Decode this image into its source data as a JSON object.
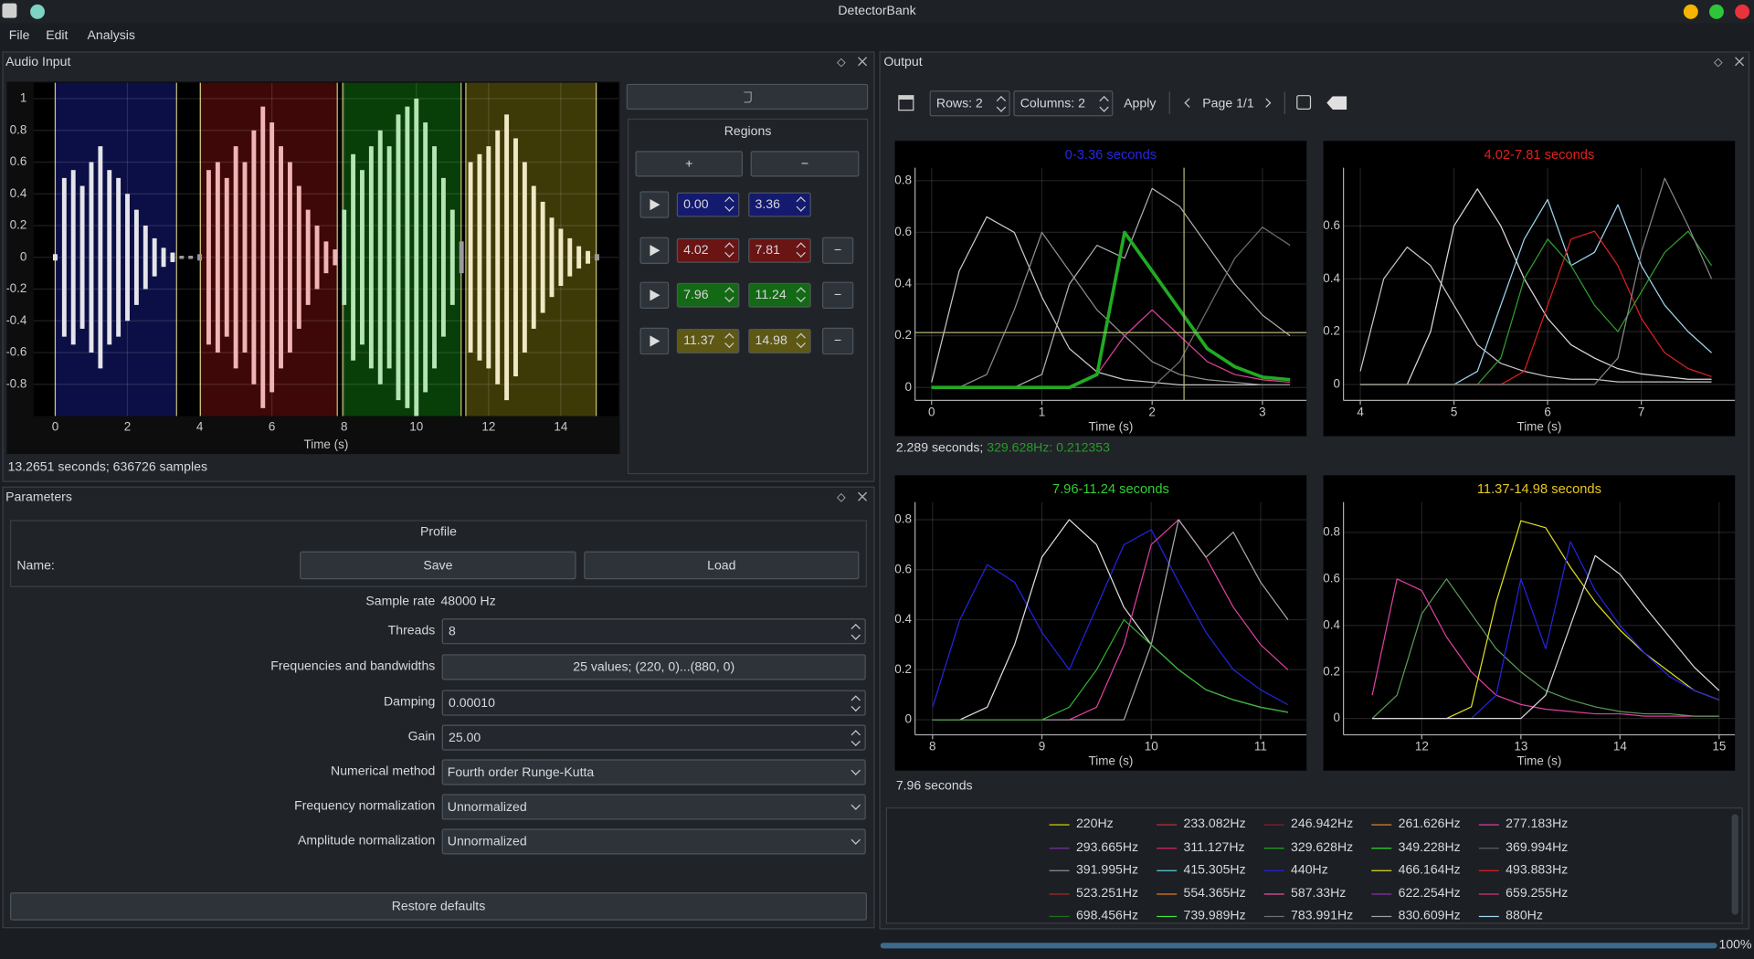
{
  "window": {
    "title": "DetectorBank",
    "menu": [
      "File",
      "Edit",
      "Analysis"
    ]
  },
  "audio_input": {
    "title": "Audio Input",
    "status": "13.2651 seconds; 636726 samples",
    "chart_data": {
      "type": "waveform",
      "xlabel": "Time (s)",
      "xlim": [
        -0.6,
        15.6
      ],
      "ylim": [
        -1.0,
        1.1
      ],
      "xticks": [
        0,
        2,
        4,
        6,
        8,
        10,
        12,
        14
      ],
      "yticks": [
        -0.8,
        -0.6,
        -0.4,
        -0.2,
        0,
        0.2,
        0.4,
        0.6,
        0.8,
        1
      ],
      "grid": true,
      "color": "#9a9a9a",
      "regions": [
        {
          "start": 0,
          "end": 3.36,
          "color": "#0c0f45",
          "wave_color": "#e4e4ea"
        },
        {
          "start": 4.02,
          "end": 7.81,
          "color": "#3e0808",
          "wave_color": "#f0b4b4"
        },
        {
          "start": 7.96,
          "end": 11.24,
          "color": "#083e08",
          "wave_color": "#b4e4b4"
        },
        {
          "start": 11.37,
          "end": 14.98,
          "color": "#3e3a08",
          "wave_color": "#f0e8c4"
        }
      ],
      "x": [
        0,
        0.25,
        0.5,
        0.75,
        1,
        1.25,
        1.5,
        1.75,
        2,
        2.25,
        2.5,
        2.75,
        3,
        3.25,
        3.5,
        3.75,
        4,
        4.25,
        4.5,
        4.75,
        5,
        5.25,
        5.5,
        5.75,
        6,
        6.25,
        6.5,
        6.75,
        7,
        7.25,
        7.5,
        7.75,
        8,
        8.25,
        8.5,
        8.75,
        9,
        9.25,
        9.5,
        9.75,
        10,
        10.25,
        10.5,
        10.75,
        11,
        11.25,
        11.5,
        11.75,
        12,
        12.25,
        12.5,
        12.75,
        13,
        13.25,
        13.5,
        13.75,
        14,
        14.25,
        14.5,
        14.75,
        15
      ],
      "values": [
        0.02,
        0.5,
        0.55,
        0.45,
        0.6,
        0.7,
        0.55,
        0.5,
        0.4,
        0.3,
        0.2,
        0.12,
        0.06,
        0.03,
        0.01,
        0.01,
        0.02,
        0.55,
        0.6,
        0.5,
        0.7,
        0.6,
        0.8,
        0.95,
        0.85,
        0.7,
        0.6,
        0.45,
        0.3,
        0.2,
        0.1,
        0.05,
        0.3,
        0.65,
        0.55,
        0.7,
        0.8,
        0.7,
        0.9,
        0.95,
        1.0,
        0.85,
        0.7,
        0.5,
        0.3,
        0.1,
        0.6,
        0.65,
        0.7,
        0.8,
        0.9,
        0.75,
        0.6,
        0.45,
        0.35,
        0.25,
        0.18,
        0.12,
        0.07,
        0.04,
        0.02
      ]
    }
  },
  "regions_panel": {
    "title": "Regions",
    "add": "+",
    "remove": "−",
    "rows": [
      {
        "start": "0.00",
        "end": "3.36",
        "color": "#141a6e",
        "removable": false
      },
      {
        "start": "4.02",
        "end": "7.81",
        "color": "#6a1414",
        "removable": true
      },
      {
        "start": "7.96",
        "end": "11.24",
        "color": "#146a14",
        "removable": true
      },
      {
        "start": "11.37",
        "end": "14.98",
        "color": "#5e5814",
        "removable": true
      }
    ]
  },
  "parameters": {
    "title": "Parameters",
    "profile": {
      "title": "Profile",
      "name_label": "Name:",
      "save": "Save",
      "load": "Load"
    },
    "fields": [
      {
        "label": "Sample rate",
        "value": "48000 Hz",
        "kind": "text"
      },
      {
        "label": "Threads",
        "value": "8",
        "kind": "spin"
      },
      {
        "label": "Frequencies and bandwidths",
        "value": "25 values; (220, 0)...(880, 0)",
        "kind": "button"
      },
      {
        "label": "Damping",
        "value": "0.00010",
        "kind": "spin"
      },
      {
        "label": "Gain",
        "value": "25.00",
        "kind": "spin"
      },
      {
        "label": "Numerical method",
        "value": "Fourth order Runge-Kutta",
        "kind": "combo"
      },
      {
        "label": "Frequency normalization",
        "value": "Unnormalized",
        "kind": "combo"
      },
      {
        "label": "Amplitude normalization",
        "value": "Unnormalized",
        "kind": "combo"
      }
    ],
    "restore": "Restore defaults"
  },
  "output": {
    "title": "Output",
    "rows": "Rows: 2",
    "columns": "Columns: 2",
    "apply": "Apply",
    "page": "Page 1/1",
    "chart_data": [
      {
        "type": "line",
        "title": "0-3.36 seconds",
        "title_color": "#2626e0",
        "xlabel": "Time (s)",
        "xlim": [
          -0.15,
          3.4
        ],
        "ylim": [
          -0.05,
          0.85
        ],
        "xticks": [
          0,
          1,
          2,
          3
        ],
        "yticks": [
          0,
          0.2,
          0.4,
          0.6,
          0.8
        ],
        "grid": true,
        "x": [
          0,
          0.25,
          0.5,
          0.75,
          1,
          1.25,
          1.5,
          1.75,
          2,
          2.25,
          2.5,
          2.75,
          3,
          3.25
        ],
        "series": [
          {
            "color": "#c8c8c8",
            "values": [
              0.02,
              0.45,
              0.66,
              0.6,
              0.35,
              0.15,
              0.06,
              0.03,
              0.02,
              0.01,
              0.01,
              0.01,
              0.01,
              0.01
            ]
          },
          {
            "color": "#909090",
            "values": [
              0,
              0,
              0.05,
              0.3,
              0.6,
              0.45,
              0.3,
              0.2,
              0.1,
              0.05,
              0.03,
              0.02,
              0.01,
              0.01
            ]
          },
          {
            "color": "#b0b0b0",
            "values": [
              0,
              0,
              0,
              0,
              0.05,
              0.4,
              0.55,
              0.5,
              0.77,
              0.7,
              0.55,
              0.4,
              0.28,
              0.2
            ]
          },
          {
            "color": "#707070",
            "values": [
              0,
              0,
              0,
              0,
              0,
              0,
              0,
              0,
              0,
              0.1,
              0.3,
              0.5,
              0.62,
              0.55
            ]
          },
          {
            "color": "#e040a0",
            "values": [
              0,
              0,
              0,
              0,
              0,
              0,
              0.05,
              0.2,
              0.3,
              0.2,
              0.1,
              0.05,
              0.03,
              0.02
            ]
          },
          {
            "color": "#22aa22",
            "width": 3,
            "values": [
              0,
              0,
              0,
              0,
              0,
              0,
              0.05,
              0.6,
              0.45,
              0.3,
              0.15,
              0.08,
              0.04,
              0.03
            ]
          }
        ],
        "cursor": {
          "x": 2.289,
          "y": 0.212353,
          "color": "#b8b878"
        }
      },
      {
        "type": "line",
        "title": "4.02-7.81 seconds",
        "title_color": "#e02020",
        "xlabel": "Time (s)",
        "xlim": [
          3.82,
          8.0
        ],
        "ylim": [
          -0.06,
          0.82
        ],
        "xticks": [
          4,
          5,
          6,
          7
        ],
        "yticks": [
          0,
          0.2,
          0.4,
          0.6
        ],
        "grid": true,
        "x": [
          4,
          4.25,
          4.5,
          4.75,
          5,
          5.25,
          5.5,
          5.75,
          6,
          6.25,
          6.5,
          6.75,
          7,
          7.25,
          7.5,
          7.75
        ],
        "series": [
          {
            "color": "#c8c8c8",
            "values": [
              0.05,
              0.4,
              0.52,
              0.45,
              0.3,
              0.15,
              0.08,
              0.05,
              0.03,
              0.02,
              0.02,
              0.01,
              0.01,
              0.01,
              0.01,
              0.01
            ]
          },
          {
            "color": "#dcdcdc",
            "values": [
              0,
              0,
              0,
              0.2,
              0.6,
              0.74,
              0.6,
              0.4,
              0.25,
              0.15,
              0.1,
              0.06,
              0.04,
              0.03,
              0.02,
              0.02
            ]
          },
          {
            "color": "#a0d8f0",
            "values": [
              0,
              0,
              0,
              0,
              0,
              0.05,
              0.3,
              0.55,
              0.7,
              0.45,
              0.5,
              0.68,
              0.45,
              0.3,
              0.2,
              0.12
            ]
          },
          {
            "color": "#e02020",
            "values": [
              0,
              0,
              0,
              0,
              0,
              0,
              0,
              0.05,
              0.3,
              0.55,
              0.58,
              0.45,
              0.25,
              0.12,
              0.06,
              0.03
            ]
          },
          {
            "color": "#30a030",
            "values": [
              0,
              0,
              0,
              0,
              0,
              0,
              0.1,
              0.4,
              0.55,
              0.45,
              0.3,
              0.2,
              0.35,
              0.5,
              0.58,
              0.45
            ]
          },
          {
            "color": "#888888",
            "values": [
              0,
              0,
              0,
              0,
              0,
              0,
              0,
              0,
              0,
              0,
              0,
              0.1,
              0.5,
              0.78,
              0.6,
              0.4
            ]
          }
        ]
      },
      {
        "type": "line",
        "title": "7.96-11.24 seconds",
        "title_color": "#30d030",
        "xlabel": "Time (s)",
        "xlim": [
          7.84,
          11.42
        ],
        "ylim": [
          -0.06,
          0.87
        ],
        "xticks": [
          8,
          9,
          10,
          11
        ],
        "yticks": [
          0,
          0.2,
          0.4,
          0.6,
          0.8
        ],
        "grid": true,
        "x": [
          8,
          8.25,
          8.5,
          8.75,
          9,
          9.25,
          9.5,
          9.75,
          10,
          10.25,
          10.5,
          10.75,
          11,
          11.25
        ],
        "series": [
          {
            "color": "#2424e0",
            "values": [
              0.05,
              0.4,
              0.62,
              0.55,
              0.35,
              0.2,
              0.45,
              0.7,
              0.76,
              0.55,
              0.35,
              0.2,
              0.12,
              0.06
            ]
          },
          {
            "color": "#e0e0e0",
            "values": [
              0,
              0,
              0.05,
              0.3,
              0.65,
              0.8,
              0.7,
              0.45,
              0.3,
              0.2,
              0.12,
              0.08,
              0.05,
              0.03
            ]
          },
          {
            "color": "#e040a0",
            "values": [
              0,
              0,
              0,
              0,
              0,
              0,
              0.05,
              0.3,
              0.7,
              0.8,
              0.65,
              0.45,
              0.3,
              0.2
            ]
          },
          {
            "color": "#aaaaaa",
            "values": [
              0,
              0,
              0,
              0,
              0,
              0,
              0,
              0,
              0.3,
              0.8,
              0.65,
              0.75,
              0.55,
              0.4
            ]
          },
          {
            "color": "#30b030",
            "values": [
              0,
              0,
              0,
              0,
              0,
              0.05,
              0.2,
              0.4,
              0.3,
              0.2,
              0.12,
              0.08,
              0.05,
              0.03
            ]
          }
        ]
      },
      {
        "type": "line",
        "title": "11.37-14.98 seconds",
        "title_color": "#e8c820",
        "xlabel": "Time (s)",
        "xlim": [
          11.21,
          15.16
        ],
        "ylim": [
          -0.07,
          0.93
        ],
        "xticks": [
          12,
          13,
          14,
          15
        ],
        "yticks": [
          0,
          0.2,
          0.4,
          0.6,
          0.8
        ],
        "grid": true,
        "x": [
          11.5,
          11.75,
          12,
          12.25,
          12.5,
          12.75,
          13,
          13.25,
          13.5,
          13.75,
          14,
          14.25,
          14.5,
          14.75,
          15
        ],
        "series": [
          {
            "color": "#e040a0",
            "values": [
              0.1,
              0.6,
              0.55,
              0.35,
              0.2,
              0.1,
              0.06,
              0.04,
              0.03,
              0.02,
              0.02,
              0.01,
              0.01,
              0.01,
              0.01
            ]
          },
          {
            "color": "#5a9a5a",
            "values": [
              0,
              0.1,
              0.45,
              0.6,
              0.45,
              0.3,
              0.2,
              0.12,
              0.08,
              0.05,
              0.03,
              0.02,
              0.02,
              0.01,
              0.01
            ]
          },
          {
            "color": "#e0e020",
            "values": [
              0,
              0,
              0,
              0,
              0.05,
              0.5,
              0.85,
              0.82,
              0.65,
              0.5,
              0.38,
              0.28,
              0.2,
              0.12,
              0.08
            ]
          },
          {
            "color": "#2424e0",
            "values": [
              0,
              0,
              0,
              0,
              0,
              0.1,
              0.6,
              0.3,
              0.76,
              0.55,
              0.4,
              0.28,
              0.18,
              0.12,
              0.08
            ]
          },
          {
            "color": "#d8d8d8",
            "values": [
              0,
              0,
              0,
              0,
              0,
              0,
              0,
              0.1,
              0.4,
              0.7,
              0.62,
              0.48,
              0.35,
              0.22,
              0.12
            ]
          }
        ]
      }
    ],
    "cursor_status": {
      "time": "2.289 seconds; ",
      "reading": "329.628Hz: 0.212353",
      "reading_color": "#2a9a2a"
    },
    "status": "7.96 seconds",
    "legend": [
      {
        "name": "220Hz",
        "color": "#d4d400"
      },
      {
        "name": "233.082Hz",
        "color": "#c03030"
      },
      {
        "name": "246.942Hz",
        "color": "#8a2020"
      },
      {
        "name": "261.626Hz",
        "color": "#e08820"
      },
      {
        "name": "277.183Hz",
        "color": "#e040a0"
      },
      {
        "name": "293.665Hz",
        "color": "#8030a0"
      },
      {
        "name": "311.127Hz",
        "color": "#e02070"
      },
      {
        "name": "329.628Hz",
        "color": "#22aa22"
      },
      {
        "name": "349.228Hz",
        "color": "#30e030"
      },
      {
        "name": "369.994Hz",
        "color": "#606060"
      },
      {
        "name": "391.995Hz",
        "color": "#909090"
      },
      {
        "name": "415.305Hz",
        "color": "#60d0e0"
      },
      {
        "name": "440Hz",
        "color": "#2424e0"
      },
      {
        "name": "466.164Hz",
        "color": "#e0e020"
      },
      {
        "name": "493.883Hz",
        "color": "#e02020"
      },
      {
        "name": "523.251Hz",
        "color": "#b02828"
      },
      {
        "name": "554.365Hz",
        "color": "#e08020"
      },
      {
        "name": "587.33Hz",
        "color": "#f050a0"
      },
      {
        "name": "622.254Hz",
        "color": "#9030b0"
      },
      {
        "name": "659.255Hz",
        "color": "#e03080"
      },
      {
        "name": "698.456Hz",
        "color": "#207020"
      },
      {
        "name": "739.989Hz",
        "color": "#40e040"
      },
      {
        "name": "783.991Hz",
        "color": "#707070"
      },
      {
        "name": "830.609Hz",
        "color": "#a0a0a0"
      },
      {
        "name": "880Hz",
        "color": "#a0d8f0"
      }
    ],
    "progress": "100%"
  }
}
